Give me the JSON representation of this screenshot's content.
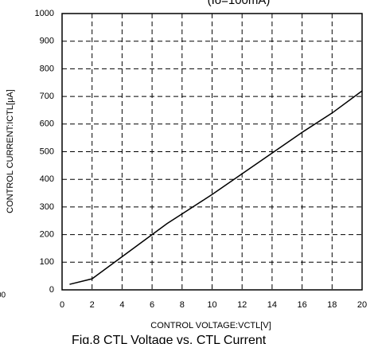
{
  "chart_data": {
    "type": "line",
    "title": "(Io=100mA)",
    "caption": "Fig.8 CTL Voltage vs. CTL Current",
    "fragment": "00",
    "x_label": "CONTROL VOLTAGE:VCTL[V]",
    "y_label": "CONTROL CURRENT:ICTL[µA]",
    "x": [
      0.5,
      2,
      4,
      6,
      7,
      8,
      10,
      12,
      14,
      16,
      18,
      20
    ],
    "values": [
      20,
      40,
      120,
      200,
      240,
      275,
      345,
      420,
      495,
      570,
      640,
      720
    ],
    "color": "#000000",
    "xlim": [
      0,
      20
    ],
    "xticks": [
      0,
      2,
      4,
      6,
      8,
      10,
      12,
      14,
      16,
      18,
      20
    ],
    "ylim": [
      0,
      1000
    ],
    "yticks": [
      0,
      100,
      200,
      300,
      400,
      500,
      600,
      700,
      800,
      900,
      1000
    ],
    "grid": true
  }
}
